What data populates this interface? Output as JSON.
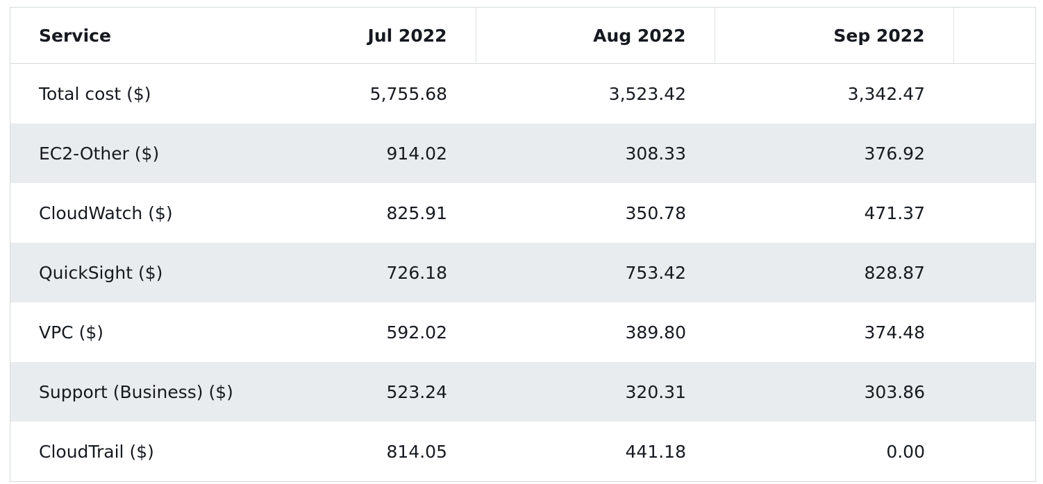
{
  "table": {
    "header": [
      "Service",
      "Jul 2022",
      "Aug 2022",
      "Sep 2022"
    ],
    "rows": [
      [
        "Total cost ($)",
        "5,755.68",
        "3,523.42",
        "3,342.47"
      ],
      [
        "EC2-Other ($)",
        "914.02",
        "308.33",
        "376.92"
      ],
      [
        "CloudWatch ($)",
        "825.91",
        "350.78",
        "471.37"
      ],
      [
        "QuickSight ($)",
        "726.18",
        "753.42",
        "828.87"
      ],
      [
        "VPC ($)",
        "592.02",
        "389.80",
        "374.48"
      ],
      [
        "Support (Business) ($)",
        "523.24",
        "320.31",
        "303.86"
      ],
      [
        "CloudTrail ($)",
        "814.05",
        "441.18",
        "0.00"
      ]
    ]
  }
}
